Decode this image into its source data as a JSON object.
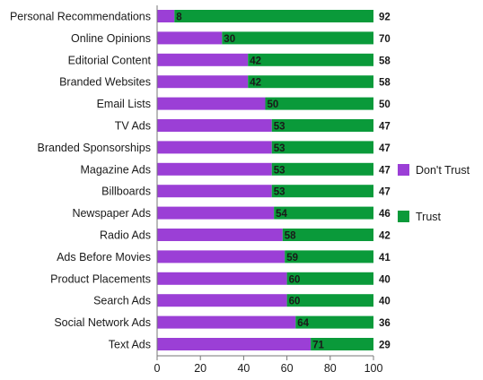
{
  "chart_data": {
    "type": "bar",
    "orientation": "horizontal",
    "stacked": true,
    "categories": [
      "Personal Recommendations",
      "Online Opinions",
      "Editorial Content",
      "Branded Websites",
      "Email Lists",
      "TV Ads",
      "Branded Sponsorships",
      "Magazine Ads",
      "Billboards",
      "Newspaper Ads",
      "Radio Ads",
      "Ads Before Movies",
      "Product Placements",
      "Search Ads",
      "Social Network Ads",
      "Text Ads"
    ],
    "series": [
      {
        "name": "Don't Trust",
        "color": "#9b3fd6",
        "values": [
          8,
          30,
          42,
          42,
          50,
          53,
          53,
          53,
          53,
          54,
          58,
          59,
          60,
          60,
          64,
          71
        ]
      },
      {
        "name": "Trust",
        "color": "#0a9a3a",
        "values": [
          92,
          70,
          58,
          58,
          50,
          47,
          47,
          47,
          47,
          46,
          42,
          41,
          40,
          40,
          36,
          29
        ]
      }
    ],
    "xlim": [
      0,
      100
    ],
    "xticks": [
      0,
      20,
      40,
      60,
      80,
      100
    ],
    "title": "",
    "xlabel": "",
    "ylabel": "",
    "legend_position": "right",
    "grid": false
  }
}
